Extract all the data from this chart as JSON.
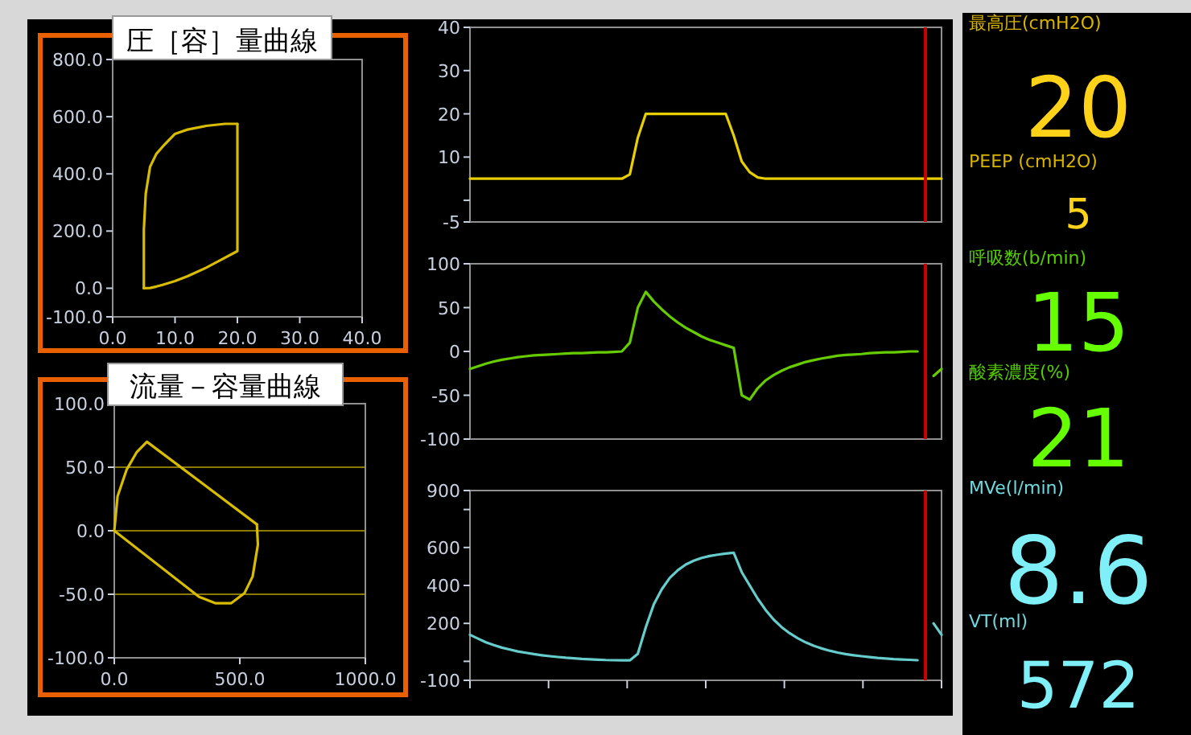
{
  "chart_data": [
    {
      "type": "line",
      "title": "圧［容］量曲線",
      "xlim": [
        0,
        40
      ],
      "ylim": [
        -100,
        800
      ],
      "xticks": [
        {
          "value": 0,
          "label": "0.0"
        },
        {
          "value": 10,
          "label": "10.0"
        },
        {
          "value": 20,
          "label": "20.0"
        },
        {
          "value": 30,
          "label": "30.0"
        },
        {
          "value": 40,
          "label": "40.0"
        }
      ],
      "yticks": [
        {
          "value": 800,
          "label": "800.0"
        },
        {
          "value": 600,
          "label": "600.0"
        },
        {
          "value": 400,
          "label": "400.0"
        },
        {
          "value": 200,
          "label": "200.0"
        },
        {
          "value": 0,
          "label": "0.0"
        },
        {
          "value": -100,
          "label": "-100.0"
        }
      ],
      "series": [
        {
          "color": "#d8bc00",
          "x": [
            5,
            5,
            5.3,
            6,
            7,
            8,
            10,
            12,
            15,
            18,
            20
          ],
          "values": [
            0,
            205,
            330,
            425,
            470,
            495,
            540,
            555,
            568,
            575,
            575
          ]
        },
        {
          "color": "#d8bc00",
          "x": [
            20,
            20,
            17,
            15,
            12,
            10,
            8,
            7,
            6,
            5
          ],
          "values": [
            575,
            130,
            95,
            72,
            42,
            25,
            12,
            6,
            1,
            0
          ]
        }
      ]
    },
    {
      "type": "line",
      "title": "流量－容量曲線",
      "xlim": [
        0,
        1000
      ],
      "ylim": [
        -100,
        100
      ],
      "grid": "y",
      "xticks": [
        {
          "value": 0,
          "label": "0.0"
        },
        {
          "value": 500,
          "label": "500.0"
        },
        {
          "value": 1000,
          "label": "1000.0"
        }
      ],
      "yticks": [
        {
          "value": 100,
          "label": "100.0"
        },
        {
          "value": 50,
          "label": "50.0"
        },
        {
          "value": 0,
          "label": "0.0"
        },
        {
          "value": -50,
          "label": "-50.0"
        },
        {
          "value": -100,
          "label": "-100.0"
        }
      ],
      "series": [
        {
          "color": "#d8bc00",
          "x": [
            0,
            5,
            13,
            49,
            90,
            130,
            568
          ],
          "values": [
            0,
            10,
            27,
            48,
            62,
            70,
            5
          ]
        },
        {
          "color": "#d8bc00",
          "x": [
            568,
            572,
            551,
            519,
            466,
            402,
            338,
            0
          ],
          "values": [
            5,
            -11,
            -36,
            -49,
            -57,
            -57,
            -52,
            0
          ]
        }
      ]
    },
    {
      "type": "line",
      "ylim": [
        -5,
        40
      ],
      "yticks": [
        40,
        30,
        20,
        10,
        {
          "value": 0,
          "label": null
        },
        -5
      ],
      "categories": [
        null,
        null,
        null,
        null,
        null,
        null,
        null,
        null,
        null,
        null,
        null,
        null,
        null,
        null,
        null,
        null,
        null,
        null,
        null,
        null,
        null,
        null,
        null,
        null,
        null,
        null,
        null,
        null,
        null,
        null,
        null,
        null,
        null,
        null,
        null,
        null,
        null,
        null,
        null,
        null,
        null,
        null,
        null,
        null,
        null,
        null,
        null,
        null,
        null,
        null,
        null,
        null,
        null,
        null,
        null,
        null,
        null,
        null,
        null,
        null
      ],
      "series": [
        {
          "color": "#e8d000",
          "values": [
            5,
            5,
            5,
            5,
            5,
            5,
            5,
            5,
            5,
            5,
            5,
            5,
            5,
            5,
            5,
            5,
            5,
            5,
            5,
            5,
            6,
            14.5,
            20,
            20,
            20,
            20,
            20,
            20,
            20,
            20,
            20,
            20,
            20,
            15,
            9,
            6.5,
            5.3,
            5,
            5,
            5,
            5,
            5,
            5,
            5,
            5,
            5,
            5,
            5,
            5,
            5,
            5,
            5,
            5,
            5,
            5,
            5,
            5,
            5,
            5,
            5
          ]
        }
      ]
    },
    {
      "type": "line",
      "ylim": [
        -100,
        100
      ],
      "yticks": [
        100,
        50,
        0,
        -50,
        -100
      ],
      "categories": [
        null,
        null,
        null,
        null,
        null,
        null,
        null,
        null,
        null,
        null,
        null,
        null,
        null,
        null,
        null,
        null,
        null,
        null,
        null,
        null,
        null,
        null,
        null,
        null,
        null,
        null,
        null,
        null,
        null,
        null,
        null,
        null,
        null,
        null,
        null,
        null,
        null,
        null,
        null,
        null,
        null,
        null,
        null,
        null,
        null,
        null,
        null,
        null,
        null,
        null,
        null,
        null,
        null,
        null,
        null,
        null,
        null,
        null,
        null,
        null
      ],
      "series": [
        {
          "color": "#66cc00",
          "values": [
            -20,
            -17,
            -14,
            -11.5,
            -9.5,
            -8,
            -6.5,
            -5.5,
            -4.5,
            -4,
            -3.5,
            -3,
            -2.5,
            -2,
            -2,
            -1.5,
            -1,
            -1,
            -0.5,
            0,
            10,
            50,
            68,
            57,
            48,
            40,
            33,
            27,
            22,
            17,
            13,
            10,
            7,
            4,
            -50,
            -55,
            -42,
            -33,
            -27,
            -22,
            -18,
            -15,
            -12,
            -10,
            -8,
            -6.5,
            -5,
            -4,
            -3.5,
            -3,
            -2,
            -1.5,
            -1,
            -1,
            -0.5,
            0,
            0,
            null,
            -28,
            -20
          ]
        }
      ]
    },
    {
      "type": "line",
      "ylim": [
        -100,
        900
      ],
      "yticks": [
        900,
        {
          "value": 800,
          "label": null
        },
        600,
        400,
        200,
        {
          "value": 0,
          "label": null
        },
        -100
      ],
      "categories": [
        null,
        null,
        null,
        null,
        null,
        null,
        null,
        null,
        null,
        null,
        null,
        null,
        null,
        null,
        null,
        null,
        null,
        null,
        null,
        null,
        null,
        null,
        null,
        null,
        null,
        null,
        null,
        null,
        null,
        null,
        null,
        null,
        null,
        null,
        null,
        null,
        null,
        null,
        null,
        null,
        null,
        null,
        null,
        null,
        null,
        null,
        null,
        null,
        null,
        null,
        null,
        null,
        null,
        null,
        null,
        null,
        null,
        null,
        null,
        null
      ],
      "series": [
        {
          "color": "#66cccc",
          "values": [
            140,
            120,
            100,
            85,
            72,
            62,
            52,
            45,
            38,
            32,
            27,
            23,
            19,
            16,
            13,
            11,
            9,
            7,
            6,
            5,
            5,
            40,
            180,
            300,
            380,
            440,
            480,
            510,
            530,
            545,
            555,
            562,
            568,
            572,
            470,
            400,
            330,
            270,
            220,
            180,
            148,
            122,
            100,
            82,
            68,
            56,
            46,
            38,
            32,
            27,
            22,
            18,
            15,
            12,
            10,
            8,
            6,
            null,
            200,
            140
          ]
        }
      ]
    },
    {
      "type": "other",
      "annotations": [
        "最高圧(cmH2O)",
        "20",
        "PEEP (cmH2O)",
        "5",
        "呼吸数(b/min)",
        "15",
        "酸素濃度(%)",
        "21",
        "MVe(l/min)",
        "8.6",
        "VT(ml)",
        "572"
      ],
      "colors": [
        "#d8b400",
        "#ffd21a",
        "#d8b400",
        "#ffd21a",
        "#55cc00",
        "#66ff00",
        "#55cc00",
        "#66ff00",
        "#70d8e0",
        "#80f0f8",
        "#70d8e0",
        "#80f0f8"
      ]
    }
  ]
}
